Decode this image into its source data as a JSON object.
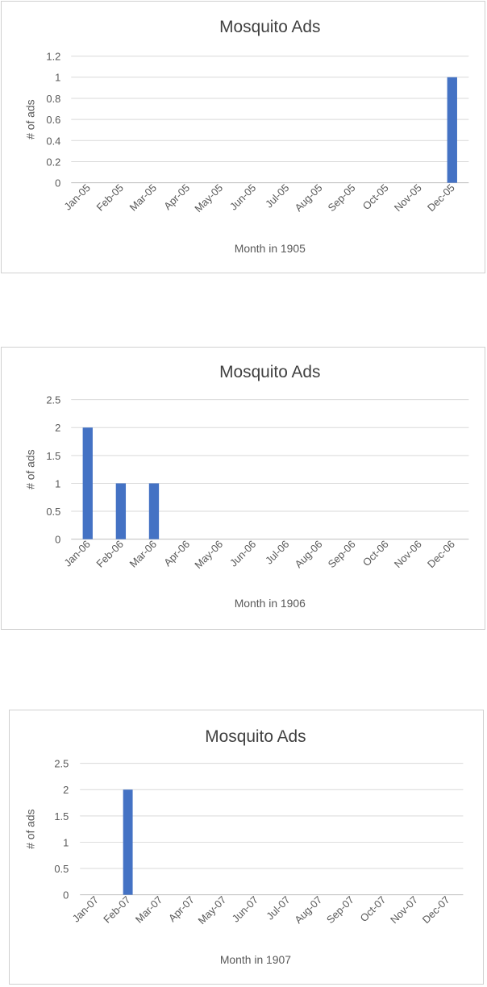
{
  "chart_data": [
    {
      "type": "bar",
      "title": "Mosquito Ads",
      "xlabel": "Month in 1905",
      "ylabel": "# of ads",
      "categories": [
        "Jan-05",
        "Feb-05",
        "Mar-05",
        "Apr-05",
        "May-05",
        "Jun-05",
        "Jul-05",
        "Aug-05",
        "Sep-05",
        "Oct-05",
        "Nov-05",
        "Dec-05"
      ],
      "values": [
        0,
        0,
        0,
        0,
        0,
        0,
        0,
        0,
        0,
        0,
        0,
        1
      ],
      "ylim": [
        0,
        1.2
      ],
      "yticks": [
        "0",
        "0.2",
        "0.4",
        "0.6",
        "0.8",
        "1",
        "1.2"
      ],
      "grid": true,
      "bar_color": "#4472C4"
    },
    {
      "type": "bar",
      "title": "Mosquito Ads",
      "xlabel": "Month in 1906",
      "ylabel": "# of ads",
      "categories": [
        "Jan-06",
        "Feb-06",
        "Mar-06",
        "Apr-06",
        "May-06",
        "Jun-06",
        "Jul-06",
        "Aug-06",
        "Sep-06",
        "Oct-06",
        "Nov-06",
        "Dec-06"
      ],
      "values": [
        2,
        1,
        1,
        0,
        0,
        0,
        0,
        0,
        0,
        0,
        0,
        0
      ],
      "ylim": [
        0,
        2.5
      ],
      "yticks": [
        "0",
        "0.5",
        "1",
        "1.5",
        "2",
        "2.5"
      ],
      "grid": true,
      "bar_color": "#4472C4"
    },
    {
      "type": "bar",
      "title": "Mosquito Ads",
      "xlabel": "Month in 1907",
      "ylabel": "# of ads",
      "categories": [
        "Jan-07",
        "Feb-07",
        "Mar-07",
        "Apr-07",
        "May-07",
        "Jun-07",
        "Jul-07",
        "Aug-07",
        "Sep-07",
        "Oct-07",
        "Nov-07",
        "Dec-07"
      ],
      "values": [
        0,
        2,
        0,
        0,
        0,
        0,
        0,
        0,
        0,
        0,
        0,
        0
      ],
      "ylim": [
        0,
        2.5
      ],
      "yticks": [
        "0",
        "0.5",
        "1",
        "1.5",
        "2",
        "2.5"
      ],
      "grid": true,
      "bar_color": "#4472C4"
    }
  ]
}
